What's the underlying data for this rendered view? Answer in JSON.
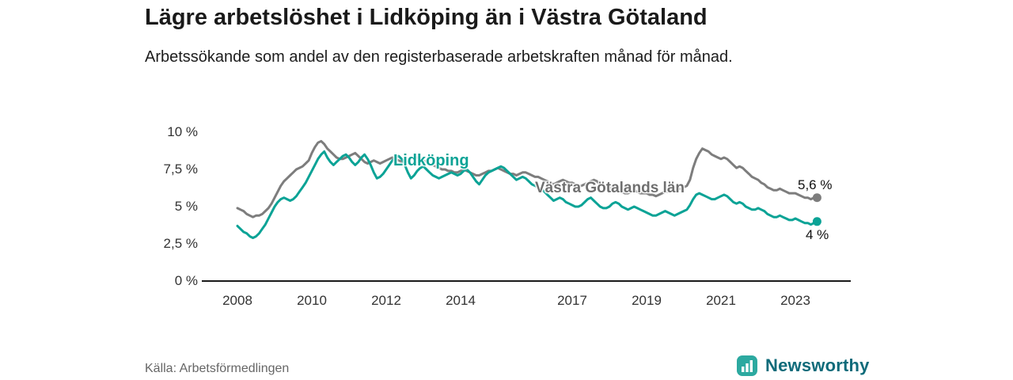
{
  "title": "Lägre arbetslöshet i Lidköping än i Västra Götaland",
  "subtitle": "Arbetssökande som andel av den registerbaserade arbetskraften månad för månad.",
  "source": "Källa: Arbetsförmedlingen",
  "logo": {
    "text": "Newsworthy",
    "icon": "bar-chart-icon",
    "icon_color": "#2ca9a0",
    "text_color": "#0f6b7a"
  },
  "colors": {
    "lidkoping": "#0ba396",
    "vastra_gotaland": "#7d7d7d",
    "axis": "#1a1a1a",
    "tick_text": "#333333"
  },
  "chart_data": {
    "type": "line",
    "title": "Lägre arbetslöshet i Lidköping än i Västra Götaland",
    "subtitle": "Arbetssökande som andel av den registerbaserade arbetskraften månad för månad.",
    "x_start_year": 2008,
    "x_step_months": 1,
    "x_end": "2023-08",
    "ylim": [
      0,
      10.5
    ],
    "grid": false,
    "legend_position": "inline-labels",
    "y_tick_labels": [
      "10 %",
      "7,5 %",
      "5 %",
      "2,5 %",
      "0 %"
    ],
    "x_tick_labels": [
      "2008",
      "2010",
      "2012",
      "2014",
      "2017",
      "2019",
      "2021",
      "2023"
    ],
    "x_tick_years": [
      2008,
      2010,
      2012,
      2014,
      2017,
      2019,
      2021,
      2023
    ],
    "series": [
      {
        "name": "Västra Götalands län",
        "color": "#7d7d7d",
        "end_label": "5,6 %",
        "end_value": 5.6,
        "values": [
          4.9,
          4.8,
          4.7,
          4.5,
          4.4,
          4.3,
          4.4,
          4.4,
          4.5,
          4.7,
          4.9,
          5.2,
          5.6,
          6.0,
          6.4,
          6.7,
          6.9,
          7.1,
          7.3,
          7.5,
          7.6,
          7.7,
          7.9,
          8.1,
          8.6,
          9.0,
          9.3,
          9.4,
          9.2,
          8.9,
          8.7,
          8.5,
          8.3,
          8.2,
          8.2,
          8.3,
          8.4,
          8.5,
          8.6,
          8.4,
          8.2,
          8.0,
          7.9,
          8.0,
          8.1,
          8.0,
          7.9,
          8.0,
          8.1,
          8.2,
          8.3,
          8.2,
          8.1,
          8.0,
          8.0,
          8.1,
          8.2,
          8.3,
          8.3,
          8.2,
          8.1,
          8.0,
          7.9,
          7.8,
          7.7,
          7.6,
          7.5,
          7.5,
          7.4,
          7.4,
          7.3,
          7.3,
          7.4,
          7.5,
          7.4,
          7.3,
          7.2,
          7.1,
          7.1,
          7.2,
          7.3,
          7.4,
          7.4,
          7.5,
          7.6,
          7.5,
          7.4,
          7.3,
          7.2,
          7.2,
          7.1,
          7.2,
          7.3,
          7.3,
          7.2,
          7.1,
          7.0,
          7.0,
          6.9,
          6.8,
          6.7,
          6.6,
          6.5,
          6.6,
          6.7,
          6.8,
          6.7,
          6.6,
          6.6,
          6.5,
          6.4,
          6.4,
          6.5,
          6.6,
          6.7,
          6.8,
          6.7,
          6.5,
          6.4,
          6.3,
          6.3,
          6.2,
          6.1,
          6.0,
          6.0,
          5.9,
          5.9,
          6.0,
          6.1,
          6.0,
          5.9,
          5.9,
          5.9,
          5.8,
          5.8,
          5.7,
          5.8,
          5.9,
          6.0,
          6.0,
          6.1,
          6.1,
          6.2,
          6.2,
          6.3,
          6.4,
          6.8,
          7.6,
          8.2,
          8.6,
          8.9,
          8.8,
          8.7,
          8.5,
          8.4,
          8.3,
          8.2,
          8.3,
          8.2,
          8.0,
          7.8,
          7.6,
          7.7,
          7.6,
          7.4,
          7.2,
          7.0,
          6.9,
          6.8,
          6.6,
          6.5,
          6.3,
          6.2,
          6.1,
          6.1,
          6.2,
          6.1,
          6.0,
          5.9,
          5.9,
          5.9,
          5.8,
          5.7,
          5.6,
          5.6,
          5.5,
          5.6,
          5.6
        ]
      },
      {
        "name": "Lidköping",
        "color": "#0ba396",
        "end_label": "4 %",
        "end_value": 4.0,
        "values": [
          3.7,
          3.5,
          3.3,
          3.2,
          3.0,
          2.9,
          3.0,
          3.2,
          3.5,
          3.8,
          4.2,
          4.6,
          5.0,
          5.3,
          5.5,
          5.6,
          5.5,
          5.4,
          5.5,
          5.7,
          6.0,
          6.3,
          6.6,
          7.0,
          7.4,
          7.8,
          8.2,
          8.5,
          8.7,
          8.3,
          8.0,
          7.8,
          8.0,
          8.2,
          8.4,
          8.5,
          8.3,
          8.0,
          7.8,
          8.0,
          8.3,
          8.5,
          8.2,
          7.8,
          7.3,
          6.9,
          7.0,
          7.2,
          7.5,
          7.8,
          8.1,
          8.3,
          8.4,
          8.2,
          7.8,
          7.3,
          6.9,
          7.1,
          7.4,
          7.6,
          7.7,
          7.5,
          7.3,
          7.1,
          7.0,
          6.9,
          7.0,
          7.1,
          7.2,
          7.3,
          7.2,
          7.1,
          7.2,
          7.4,
          7.5,
          7.3,
          7.0,
          6.7,
          6.5,
          6.8,
          7.1,
          7.3,
          7.4,
          7.5,
          7.6,
          7.7,
          7.6,
          7.4,
          7.2,
          7.0,
          6.8,
          6.9,
          7.0,
          6.9,
          6.7,
          6.5,
          6.4,
          6.3,
          6.2,
          6.0,
          5.8,
          5.6,
          5.4,
          5.5,
          5.6,
          5.5,
          5.3,
          5.2,
          5.1,
          5.0,
          5.0,
          5.1,
          5.3,
          5.5,
          5.6,
          5.4,
          5.2,
          5.0,
          4.9,
          4.9,
          5.0,
          5.2,
          5.3,
          5.2,
          5.0,
          4.9,
          4.8,
          4.9,
          5.0,
          4.9,
          4.8,
          4.7,
          4.6,
          4.5,
          4.4,
          4.4,
          4.5,
          4.6,
          4.7,
          4.6,
          4.5,
          4.4,
          4.5,
          4.6,
          4.7,
          4.8,
          5.1,
          5.5,
          5.8,
          5.9,
          5.8,
          5.7,
          5.6,
          5.5,
          5.5,
          5.6,
          5.7,
          5.8,
          5.7,
          5.5,
          5.3,
          5.2,
          5.3,
          5.2,
          5.0,
          4.9,
          4.8,
          4.8,
          4.9,
          4.8,
          4.7,
          4.5,
          4.4,
          4.3,
          4.3,
          4.4,
          4.3,
          4.2,
          4.1,
          4.1,
          4.2,
          4.1,
          4.0,
          3.9,
          3.9,
          3.8,
          3.9,
          4.0
        ]
      }
    ]
  }
}
